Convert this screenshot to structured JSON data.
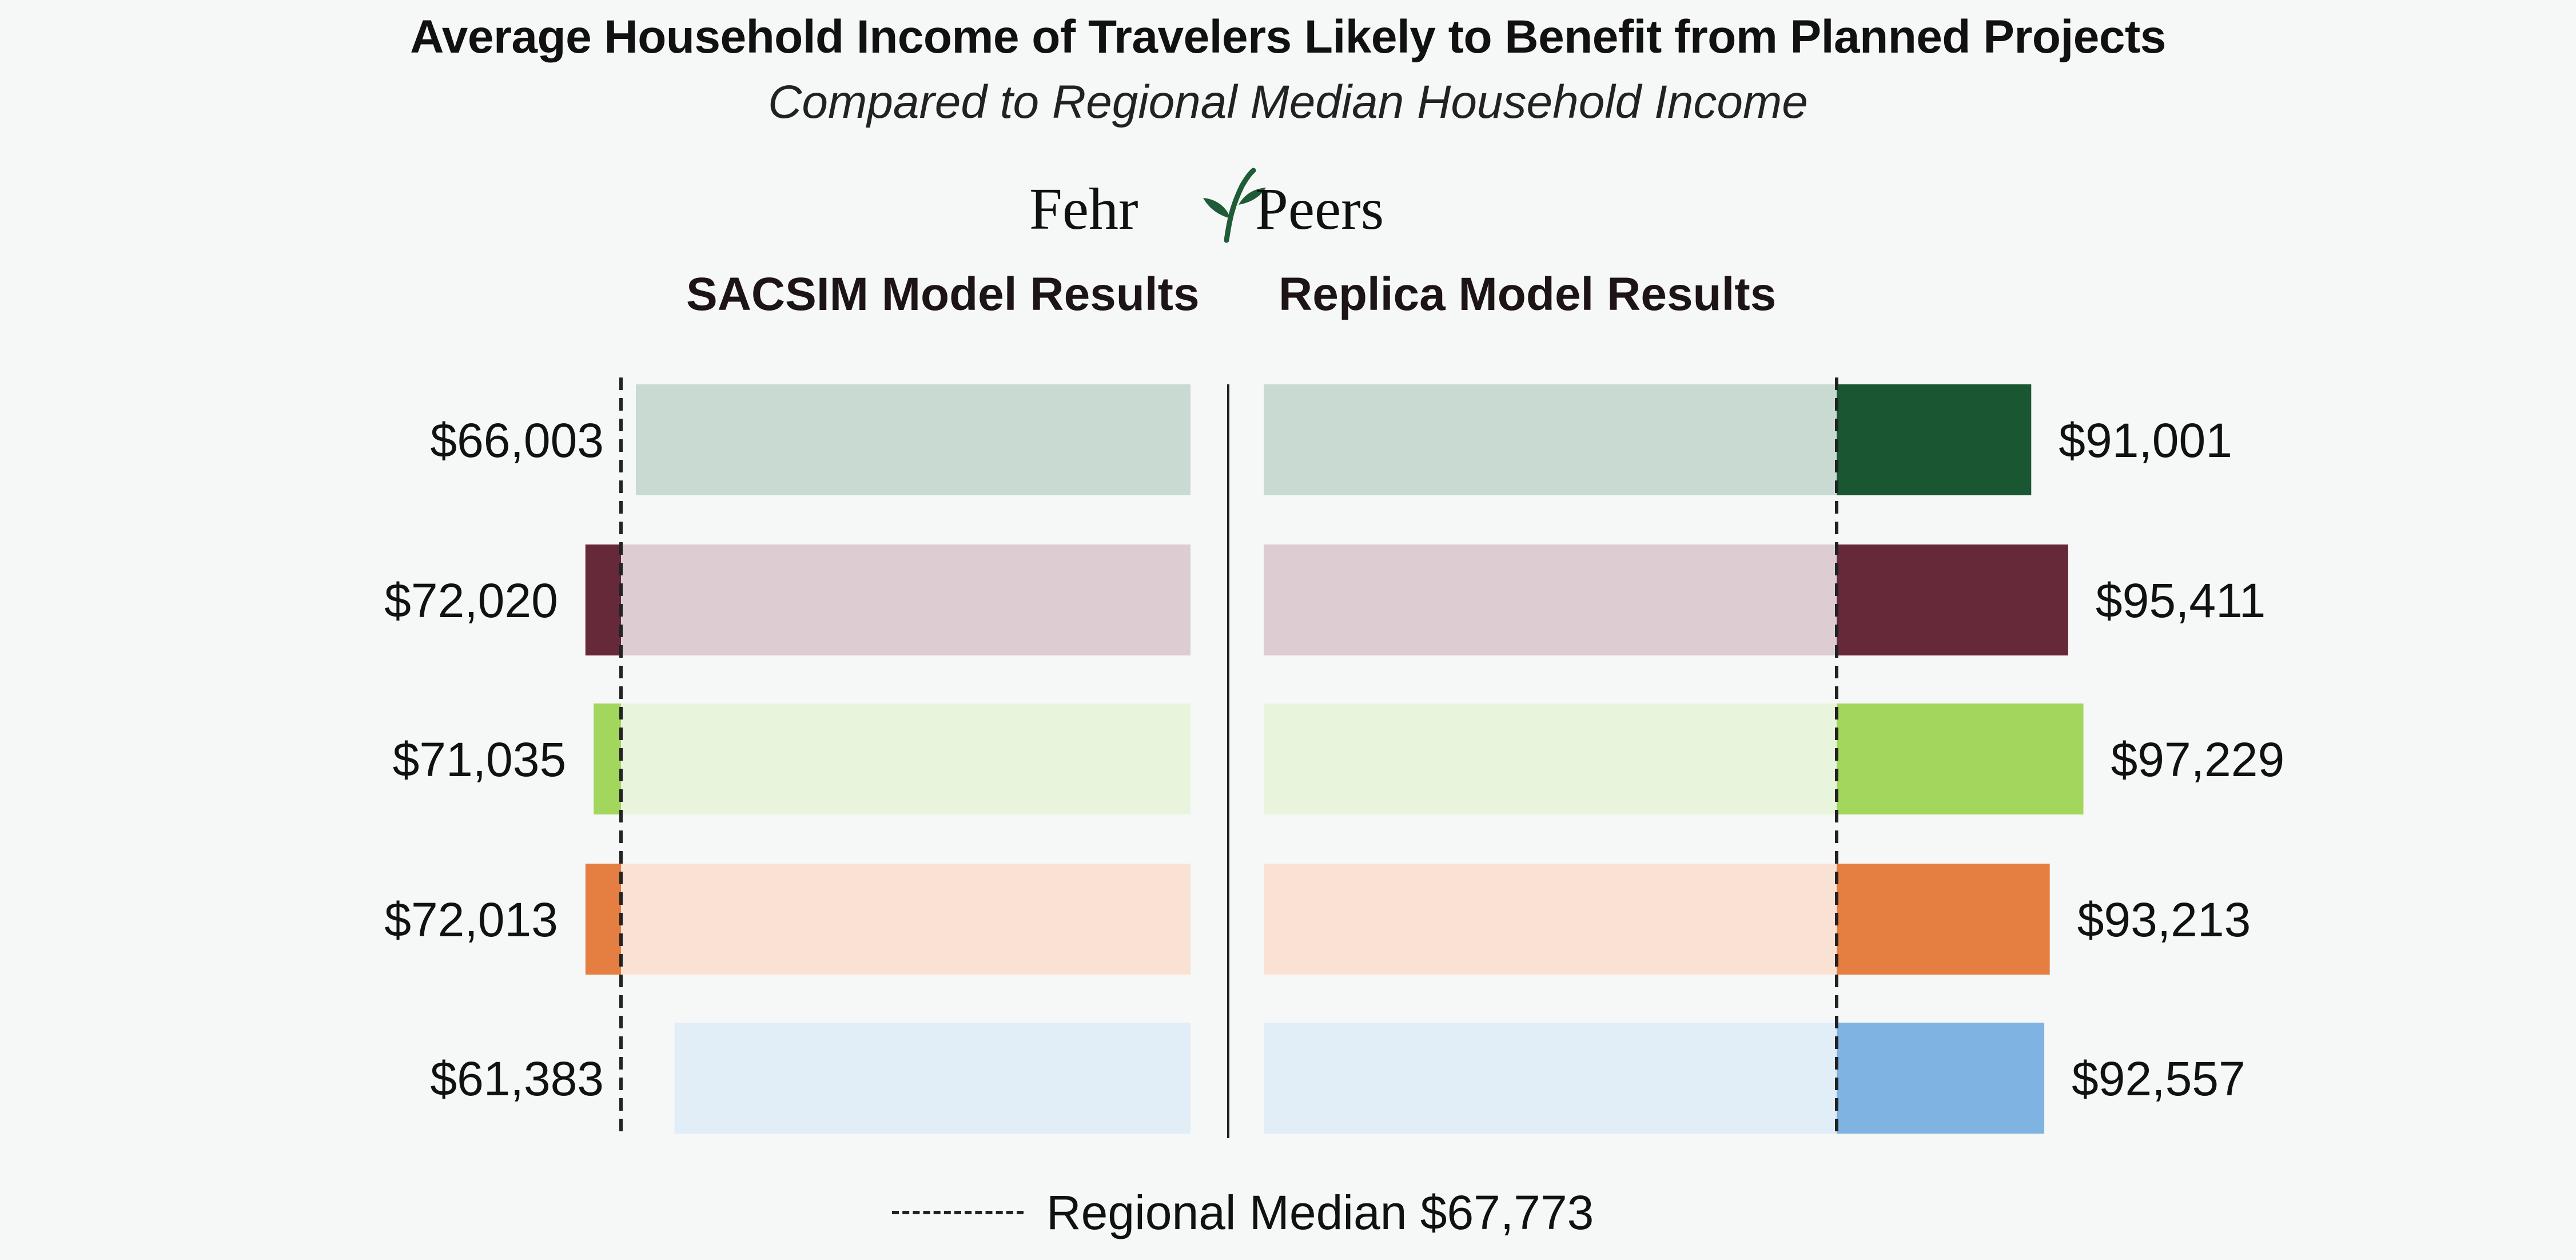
{
  "title": "Average Household Income of Travelers Likely to Benefit from Planned Projects",
  "subtitle": "Compared to Regional Median Household Income",
  "logo": {
    "left": "Fehr",
    "right": "Peers",
    "icon": "leaf-icon"
  },
  "colors": {
    "background": "#f6f8f8",
    "reference_line": "#222222",
    "divider": "#222222"
  },
  "legend": {
    "label": "Regional Median $67,773"
  },
  "chart_data": {
    "type": "bar",
    "orientation": "horizontal",
    "median": 67773,
    "median_label": "Regional Median $67,773",
    "bar_colors": [
      "#1a5632",
      "#66293a",
      "#a3d65d",
      "#e57e41",
      "#7fb3e2"
    ],
    "bar_background_colors": [
      "#c8dad1",
      "#ddcdd3",
      "#e8f5dc",
      "#f9e1d4",
      "#e1edf7"
    ],
    "panels": [
      {
        "title": "SACSIM Model Results",
        "values": [
          66003,
          72020,
          71035,
          72013,
          61383
        ],
        "labels": [
          "$66,003",
          "$72,020",
          "$71,035",
          "$72,013",
          "$61,383"
        ]
      },
      {
        "title": "Replica Model Results",
        "values": [
          91001,
          95411,
          97229,
          93213,
          92557
        ],
        "labels": [
          "$91,001",
          "$95,411",
          "$97,229",
          "$93,213",
          "$92,557"
        ]
      }
    ]
  }
}
